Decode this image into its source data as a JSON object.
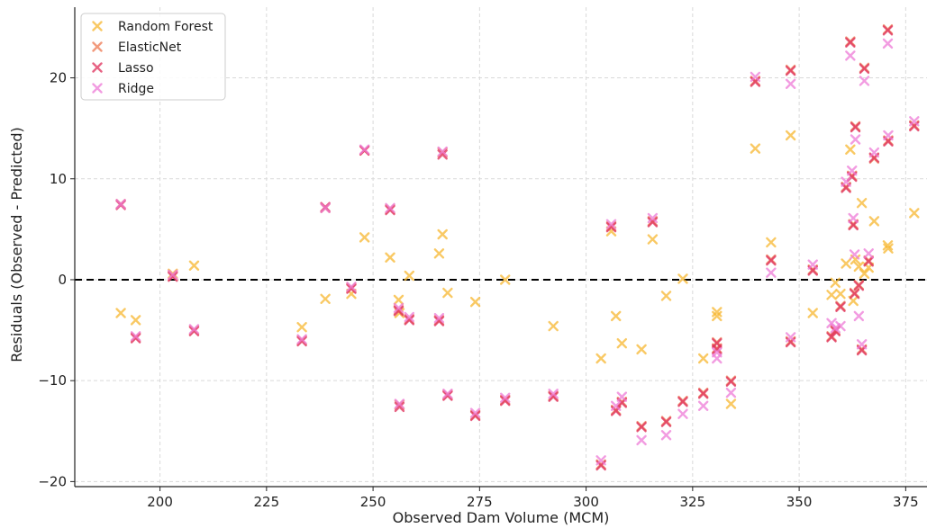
{
  "chart_data": {
    "type": "scatter",
    "xlabel": "Observed Dam Volume (MCM)",
    "ylabel": "Residuals (Observed - Predicted)",
    "xlim": [
      180,
      380
    ],
    "ylim": [
      -20.5,
      27
    ],
    "xticks": [
      200,
      225,
      250,
      275,
      300,
      325,
      350,
      375
    ],
    "yticks": [
      -20,
      -10,
      0,
      10,
      20
    ],
    "xtick_labels": [
      "200",
      "225",
      "250",
      "275",
      "300",
      "325",
      "350",
      "375"
    ],
    "ytick_labels": [
      "−20",
      "−10",
      "0",
      "10",
      "20"
    ],
    "grid": true,
    "legend_position": "top-left",
    "reference_line": {
      "y": 0,
      "style": "dashed",
      "color": "#000000"
    },
    "series": [
      {
        "name": "Random Forest",
        "color": "#f7b731",
        "marker": "x",
        "points": [
          [
            190.8,
            -3.3
          ],
          [
            194.3,
            -4
          ],
          [
            203,
            0.6
          ],
          [
            208,
            1.4
          ],
          [
            233.3,
            -4.7
          ],
          [
            238.8,
            -1.9
          ],
          [
            244.9,
            -1.4
          ],
          [
            248,
            4.2
          ],
          [
            254,
            2.2
          ],
          [
            256,
            -2
          ],
          [
            256.2,
            -3.3
          ],
          [
            258.5,
            0.4
          ],
          [
            265.5,
            2.6
          ],
          [
            266.3,
            4.5
          ],
          [
            267.5,
            -1.3
          ],
          [
            274,
            -2.2
          ],
          [
            281,
            0
          ],
          [
            292.3,
            -4.6
          ],
          [
            303.5,
            -7.8
          ],
          [
            305.9,
            4.8
          ],
          [
            307,
            -3.6
          ],
          [
            308.4,
            -6.3
          ],
          [
            313,
            -6.9
          ],
          [
            315.6,
            4
          ],
          [
            318.8,
            -1.6
          ],
          [
            322.7,
            0.1
          ],
          [
            327.5,
            -7.8
          ],
          [
            330.7,
            -3.2
          ],
          [
            330.7,
            -3.6
          ],
          [
            334,
            -12.3
          ],
          [
            339.7,
            13
          ],
          [
            343.4,
            3.7
          ],
          [
            348,
            14.3
          ],
          [
            353.2,
            -3.3
          ],
          [
            357.6,
            -1.5
          ],
          [
            358.5,
            -0.3
          ],
          [
            359.7,
            -1.4
          ],
          [
            361,
            1.6
          ],
          [
            362,
            12.9
          ],
          [
            362.7,
            -2.1
          ],
          [
            363.2,
            2
          ],
          [
            364,
            1.3
          ],
          [
            364.7,
            7.6
          ],
          [
            365.3,
            0.6
          ],
          [
            366.3,
            1.2
          ],
          [
            367.6,
            5.8
          ],
          [
            370.8,
            3.4
          ],
          [
            370.9,
            3.1
          ],
          [
            377,
            6.6
          ]
        ]
      },
      {
        "name": "ElasticNet",
        "color": "#ee7a52",
        "marker": "x",
        "points": [
          [
            190.8,
            7.5
          ],
          [
            194.3,
            -5.7
          ],
          [
            203,
            0.4
          ],
          [
            208,
            -5
          ],
          [
            233.3,
            -6
          ],
          [
            238.8,
            7.1
          ],
          [
            244.9,
            -0.8
          ],
          [
            248,
            12.8
          ],
          [
            254,
            7
          ],
          [
            256,
            -3
          ],
          [
            256.2,
            -12.4
          ],
          [
            258.5,
            -3.9
          ],
          [
            265.5,
            -4
          ],
          [
            266.3,
            12.6
          ],
          [
            267.5,
            -11.4
          ],
          [
            274,
            -13.4
          ],
          [
            281,
            -11.9
          ],
          [
            292.3,
            -11.5
          ],
          [
            303.5,
            -18.3
          ],
          [
            305.9,
            5.3
          ],
          [
            307,
            -12.9
          ],
          [
            308.4,
            -12.1
          ],
          [
            313,
            -14.5
          ],
          [
            315.6,
            5.8
          ],
          [
            318.8,
            -14
          ],
          [
            322.7,
            -12
          ],
          [
            327.5,
            -11.2
          ],
          [
            330.7,
            -6.2
          ],
          [
            330.7,
            -6.8
          ],
          [
            334,
            -10
          ],
          [
            339.7,
            19.7
          ],
          [
            343.4,
            2
          ],
          [
            348,
            -6.1
          ],
          [
            348,
            20.8
          ],
          [
            353.2,
            1
          ],
          [
            357.6,
            -5.6
          ],
          [
            358.5,
            -5
          ],
          [
            359.7,
            -2.6
          ],
          [
            361,
            9.2
          ],
          [
            362,
            23.6
          ],
          [
            362.4,
            10.3
          ],
          [
            362.7,
            5.5
          ],
          [
            363,
            -1.3
          ],
          [
            363.2,
            15.2
          ],
          [
            364,
            -0.5
          ],
          [
            364.7,
            -6.9
          ],
          [
            365.3,
            21
          ],
          [
            366.3,
            1.9
          ],
          [
            367.6,
            12
          ],
          [
            370.8,
            24.8
          ],
          [
            370.9,
            13.8
          ],
          [
            377,
            15.3
          ]
        ]
      },
      {
        "name": "Lasso",
        "color": "#e0305c",
        "marker": "x",
        "points": [
          [
            190.8,
            7.4
          ],
          [
            194.3,
            -5.8
          ],
          [
            203,
            0.3
          ],
          [
            208,
            -5.1
          ],
          [
            233.3,
            -6.1
          ],
          [
            238.8,
            7.2
          ],
          [
            244.9,
            -0.9
          ],
          [
            248,
            12.8
          ],
          [
            254,
            6.9
          ],
          [
            256,
            -3.1
          ],
          [
            256.2,
            -12.6
          ],
          [
            258.5,
            -4
          ],
          [
            265.5,
            -4.1
          ],
          [
            266.3,
            12.4
          ],
          [
            267.5,
            -11.5
          ],
          [
            274,
            -13.5
          ],
          [
            281,
            -12
          ],
          [
            292.3,
            -11.6
          ],
          [
            303.5,
            -18.4
          ],
          [
            305.9,
            5.2
          ],
          [
            307,
            -13
          ],
          [
            308.4,
            -12.2
          ],
          [
            313,
            -14.6
          ],
          [
            315.6,
            5.7
          ],
          [
            318.8,
            -14.1
          ],
          [
            322.7,
            -12.1
          ],
          [
            327.5,
            -11.3
          ],
          [
            330.7,
            -6.3
          ],
          [
            330.7,
            -6.9
          ],
          [
            334,
            -10.1
          ],
          [
            339.7,
            19.6
          ],
          [
            343.4,
            1.9
          ],
          [
            348,
            -6.2
          ],
          [
            348,
            20.7
          ],
          [
            353.2,
            0.9
          ],
          [
            357.6,
            -5.7
          ],
          [
            358.5,
            -5.1
          ],
          [
            359.7,
            -2.7
          ],
          [
            361,
            9.1
          ],
          [
            362,
            23.5
          ],
          [
            362.4,
            10.2
          ],
          [
            362.7,
            5.4
          ],
          [
            363,
            -1.4
          ],
          [
            363.2,
            15.1
          ],
          [
            364,
            -0.6
          ],
          [
            364.7,
            -7
          ],
          [
            365.3,
            20.9
          ],
          [
            366.3,
            1.8
          ],
          [
            367.6,
            12.1
          ],
          [
            370.8,
            24.7
          ],
          [
            370.9,
            13.7
          ],
          [
            377,
            15.2
          ]
        ]
      },
      {
        "name": "Ridge",
        "color": "#ee7bd7",
        "marker": "x",
        "points": [
          [
            190.8,
            7.5
          ],
          [
            194.3,
            -5.6
          ],
          [
            203,
            0.5
          ],
          [
            208,
            -4.9
          ],
          [
            233.3,
            -5.9
          ],
          [
            238.8,
            7.1
          ],
          [
            244.9,
            -0.7
          ],
          [
            248,
            12.9
          ],
          [
            254,
            7.1
          ],
          [
            256,
            -2.8
          ],
          [
            256.2,
            -12.3
          ],
          [
            258.5,
            -3.7
          ],
          [
            265.5,
            -3.8
          ],
          [
            266.3,
            12.7
          ],
          [
            267.5,
            -11.3
          ],
          [
            274,
            -13.2
          ],
          [
            281,
            -11.7
          ],
          [
            292.3,
            -11.3
          ],
          [
            303.5,
            -17.9
          ],
          [
            305.9,
            5.5
          ],
          [
            307,
            -12.5
          ],
          [
            308.4,
            -11.6
          ],
          [
            313,
            -15.9
          ],
          [
            315.6,
            6.1
          ],
          [
            318.8,
            -15.4
          ],
          [
            322.7,
            -13.3
          ],
          [
            327.5,
            -12.5
          ],
          [
            330.7,
            -7.2
          ],
          [
            330.7,
            -7.8
          ],
          [
            334,
            -11.2
          ],
          [
            339.7,
            20.1
          ],
          [
            343.4,
            0.7
          ],
          [
            348,
            -5.7
          ],
          [
            348,
            19.4
          ],
          [
            353.2,
            1.5
          ],
          [
            357.6,
            -4.3
          ],
          [
            358.5,
            -4.8
          ],
          [
            359.7,
            -4.6
          ],
          [
            361,
            9.7
          ],
          [
            362,
            22.2
          ],
          [
            362.4,
            10.8
          ],
          [
            362.7,
            6.1
          ],
          [
            363,
            2.5
          ],
          [
            363.2,
            13.9
          ],
          [
            364,
            -3.6
          ],
          [
            364.7,
            -6.4
          ],
          [
            365.3,
            19.7
          ],
          [
            366.3,
            2.6
          ],
          [
            367.6,
            12.6
          ],
          [
            370.8,
            23.4
          ],
          [
            370.9,
            14.3
          ],
          [
            377,
            15.7
          ]
        ]
      }
    ]
  }
}
